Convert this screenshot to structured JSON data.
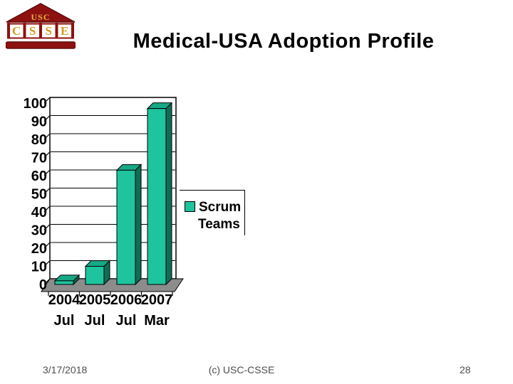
{
  "logo": {
    "roof_text": "USC",
    "letters": [
      "C",
      "S",
      "S",
      "E"
    ]
  },
  "title": "Medical-USA Adoption Profile",
  "footer": {
    "date": "3/17/2018",
    "credit": "(c) USC-CSSE",
    "page": "28"
  },
  "colors": {
    "bar_front": "#1EC49E",
    "bar_top": "#17A886",
    "bar_side": "#0B6E55",
    "floor": "#8C8C8C",
    "wall": "#FFFFFF",
    "line": "#000000",
    "maroon": "#8E1111",
    "maroon_dark": "#5E0A0A",
    "gold": "#D29A1E",
    "gold_light": "#E6B83C",
    "footer_text": "#4D4D4D"
  },
  "chart_data": {
    "type": "bar",
    "style": "3d-column",
    "title": "",
    "xlabel": "",
    "ylabel": "",
    "categories": [
      "2004 Jul",
      "2005 Jul",
      "2006 Jul",
      "2007 Mar"
    ],
    "series": [
      {
        "name": "Scrum Teams",
        "values": [
          2,
          10,
          63,
          97
        ]
      }
    ],
    "ylim": [
      0,
      100
    ],
    "ytick_step": 10,
    "grid": "horizontal",
    "legend_position": "right",
    "legend_lines": [
      "Scrum",
      "Teams"
    ]
  }
}
